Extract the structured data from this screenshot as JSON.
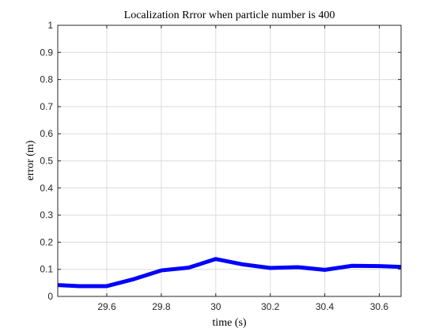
{
  "chart_data": {
    "type": "line",
    "title": "Localization Rrror when particle number is 400",
    "xlabel": "time (s)",
    "ylabel": "error (m)",
    "xlim": [
      29.42,
      30.68
    ],
    "ylim": [
      0,
      1
    ],
    "grid": true,
    "x_ticks": [
      29.6,
      29.8,
      30,
      30.2,
      30.4,
      30.6
    ],
    "x_tick_labels": [
      "29.6",
      "29.8",
      "30",
      "30.2",
      "30.4",
      "30.6"
    ],
    "y_ticks": [
      0,
      0.1,
      0.2,
      0.3,
      0.4,
      0.5,
      0.6,
      0.7,
      0.8,
      0.9,
      1
    ],
    "y_tick_labels": [
      "0",
      "0.1",
      "0.2",
      "0.3",
      "0.4",
      "0.5",
      "0.6",
      "0.7",
      "0.8",
      "0.9",
      "1"
    ],
    "series": [
      {
        "color": "#0000ff",
        "x": [
          29.42,
          29.5,
          29.6,
          29.7,
          29.8,
          29.9,
          30.0,
          30.1,
          30.2,
          30.3,
          30.4,
          30.5,
          30.6,
          30.68
        ],
        "y": [
          0.042,
          0.038,
          0.038,
          0.064,
          0.096,
          0.106,
          0.138,
          0.118,
          0.105,
          0.108,
          0.098,
          0.113,
          0.112,
          0.109
        ]
      }
    ]
  }
}
